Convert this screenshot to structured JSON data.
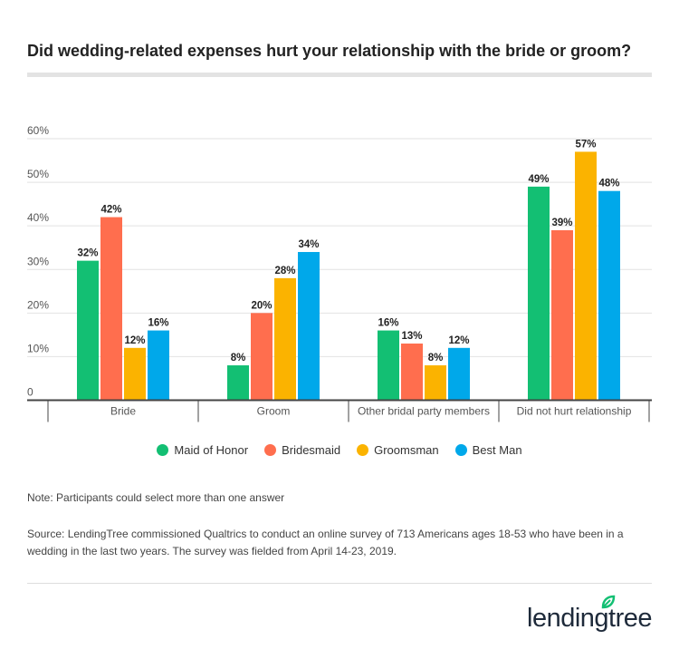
{
  "title": "Did wedding-related expenses hurt your relationship with the bride or groom?",
  "note": "Note: Participants could select more than one answer",
  "source": "Source: LendingTree commissioned Qualtrics to conduct an online survey of 713 Americans ages 18-53 who have been in a wedding in the last two years. The survey was fielded from April 14-23, 2019.",
  "logo": "lendingtree",
  "chart_data": {
    "type": "bar",
    "title": "Did wedding-related expenses hurt your relationship with the bride or groom?",
    "categories": [
      "Bride",
      "Groom",
      "Other bridal party members",
      "Did not hurt relationship"
    ],
    "series": [
      {
        "name": "Maid of Honor",
        "color": "#13bf73",
        "values": [
          32,
          8,
          16,
          49
        ]
      },
      {
        "name": "Bridesmaid",
        "color": "#ff6e4e",
        "values": [
          42,
          20,
          13,
          39
        ]
      },
      {
        "name": "Groomsman",
        "color": "#fbb300",
        "values": [
          12,
          28,
          8,
          57
        ]
      },
      {
        "name": "Best Man",
        "color": "#00a8ea",
        "values": [
          16,
          34,
          12,
          48
        ]
      }
    ],
    "ylim": [
      0,
      60
    ],
    "yticks": [
      "0",
      "10%",
      "20%",
      "30%",
      "40%",
      "50%",
      "60%"
    ],
    "value_suffix": "%",
    "grid": true,
    "legend": "bottom"
  }
}
